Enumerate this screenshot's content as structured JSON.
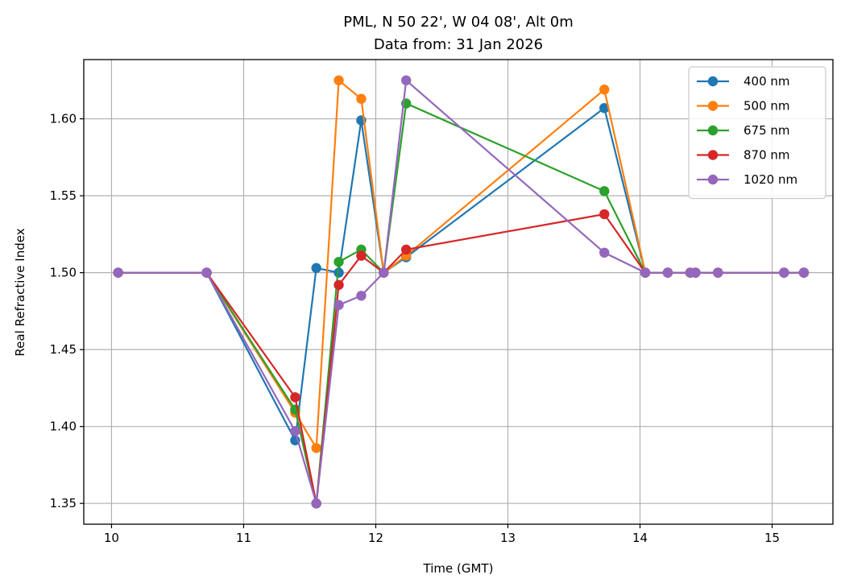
{
  "chart_data": {
    "type": "line",
    "title": "PML, N 50 22', W 04 08', Alt 0m",
    "subtitle": "Data from: 31 Jan 2026",
    "xlabel": "Time (GMT)",
    "ylabel": "Real Refractive Index",
    "xlim": [
      9.79,
      15.46
    ],
    "ylim": [
      1.3365,
      1.6385
    ],
    "xticks": [
      10,
      11,
      12,
      13,
      14,
      15
    ],
    "yticks": [
      1.35,
      1.4,
      1.45,
      1.5,
      1.55,
      1.6
    ],
    "xtick_labels": [
      "10",
      "11",
      "12",
      "13",
      "14",
      "15"
    ],
    "ytick_labels": [
      "1.35",
      "1.40",
      "1.45",
      "1.50",
      "1.55",
      "1.60"
    ],
    "grid": true,
    "legend_position": "top-right",
    "series": [
      {
        "name": "400 nm",
        "color": "#1f77b4",
        "x": [
          10.05,
          10.72,
          11.39,
          11.55,
          11.72,
          11.89,
          12.06,
          12.23,
          13.73,
          14.04,
          14.21,
          14.38,
          14.42,
          14.59,
          15.09,
          15.24
        ],
        "y": [
          1.5,
          1.5,
          1.391,
          1.503,
          1.5,
          1.599,
          1.5,
          1.51,
          1.607,
          1.5,
          1.5,
          1.5,
          1.5,
          1.5,
          1.5,
          1.5
        ]
      },
      {
        "name": "500 nm",
        "color": "#ff7f0e",
        "x": [
          10.05,
          10.72,
          11.39,
          11.55,
          11.72,
          11.89,
          12.06,
          12.23,
          13.73,
          14.04,
          14.21,
          14.38,
          14.42,
          14.59,
          15.09,
          15.24
        ],
        "y": [
          1.5,
          1.5,
          1.409,
          1.386,
          1.625,
          1.613,
          1.5,
          1.511,
          1.619,
          1.5,
          1.5,
          1.5,
          1.5,
          1.5,
          1.5,
          1.5
        ]
      },
      {
        "name": "675 nm",
        "color": "#2ca02c",
        "x": [
          10.05,
          10.72,
          11.39,
          11.55,
          11.72,
          11.89,
          12.06,
          12.23,
          13.73,
          14.04,
          14.21,
          14.38,
          14.42,
          14.59,
          15.09,
          15.24
        ],
        "y": [
          1.5,
          1.5,
          1.411,
          1.35,
          1.507,
          1.515,
          1.5,
          1.61,
          1.553,
          1.5,
          1.5,
          1.5,
          1.5,
          1.5,
          1.5,
          1.5
        ]
      },
      {
        "name": "870 nm",
        "color": "#d62728",
        "x": [
          10.05,
          10.72,
          11.39,
          11.55,
          11.72,
          11.89,
          12.06,
          12.23,
          13.73,
          14.04,
          14.21,
          14.38,
          14.42,
          14.59,
          15.09,
          15.24
        ],
        "y": [
          1.5,
          1.5,
          1.419,
          1.35,
          1.492,
          1.511,
          1.5,
          1.515,
          1.538,
          1.5,
          1.5,
          1.5,
          1.5,
          1.5,
          1.5,
          1.5
        ]
      },
      {
        "name": "1020 nm",
        "color": "#9467bd",
        "x": [
          10.05,
          10.72,
          11.39,
          11.55,
          11.72,
          11.89,
          12.06,
          12.23,
          13.73,
          14.04,
          14.21,
          14.38,
          14.42,
          14.59,
          15.09,
          15.24
        ],
        "y": [
          1.5,
          1.5,
          1.397,
          1.35,
          1.479,
          1.485,
          1.5,
          1.625,
          1.513,
          1.5,
          1.5,
          1.5,
          1.5,
          1.5,
          1.5,
          1.5
        ]
      }
    ]
  }
}
